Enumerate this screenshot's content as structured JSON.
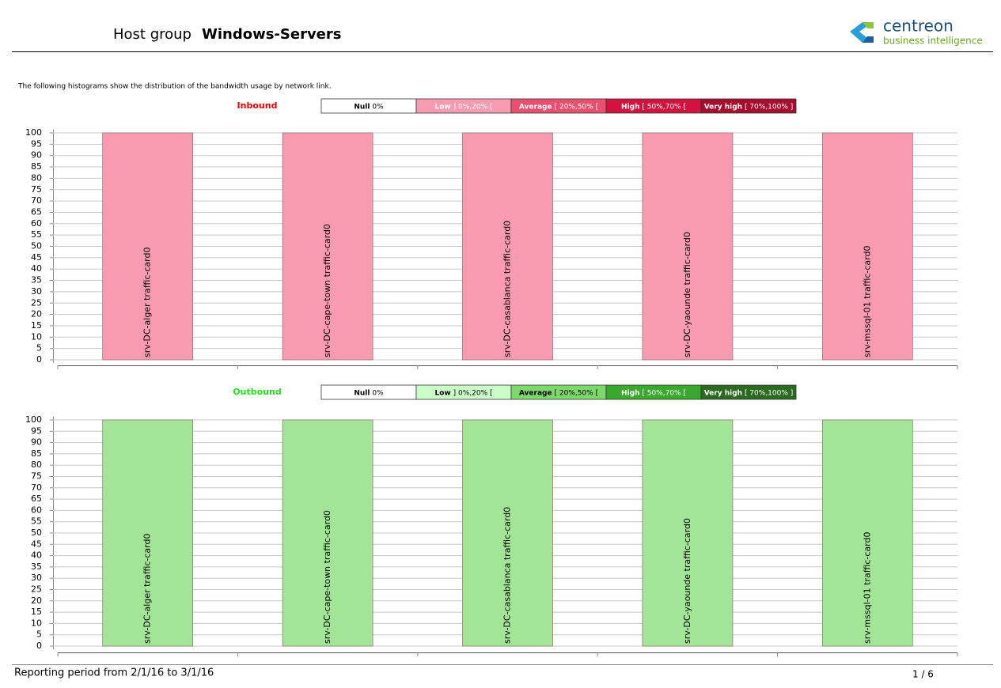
{
  "header": {
    "label": "Host group",
    "title": "Windows-Servers",
    "logo_name": "centreon",
    "logo_tagline": "business intelligence"
  },
  "intro": "The following histograms show the distribution of the bandwidth usage by network link.",
  "chart_data": [
    {
      "type": "bar",
      "title": "Inbound",
      "title_color": "#e00000",
      "legend": [
        {
          "name": "Null",
          "range": "0%",
          "color": "#ffffff",
          "text_color": "#000000"
        },
        {
          "name": "Low",
          "range": "] 0%,20% [",
          "color": "#f99bb0",
          "text_color": "#ffffff"
        },
        {
          "name": "Average",
          "range": "[ 20%,50% [",
          "color": "#e9506f",
          "text_color": "#ffffff"
        },
        {
          "name": "High",
          "range": "[ 50%,70% [",
          "color": "#d41240",
          "text_color": "#ffffff"
        },
        {
          "name": "Very high",
          "range": "[ 70%,100% ]",
          "color": "#a80d2e",
          "text_color": "#ffffff"
        }
      ],
      "categories": [
        "srv-DC-alger traffic-card0",
        "srv-DC-cape-town traffic-card0",
        "srv-DC-casablanca traffic-card0",
        "srv-DC-yaounde traffic-card0",
        "srv-mssql-01 traffic-card0"
      ],
      "values": [
        100,
        100,
        100,
        100,
        100
      ],
      "color": "#f99bb0",
      "ylim": [
        0,
        100
      ],
      "yticks": [
        0,
        5,
        10,
        15,
        20,
        25,
        30,
        35,
        40,
        45,
        50,
        55,
        60,
        65,
        70,
        75,
        80,
        85,
        90,
        95,
        100
      ],
      "grid": true
    },
    {
      "type": "bar",
      "title": "Outbound",
      "title_color": "#22e022",
      "legend": [
        {
          "name": "Null",
          "range": "0%",
          "color": "#ffffff",
          "text_color": "#000000"
        },
        {
          "name": "Low",
          "range": "] 0%,20% [",
          "color": "#ccfcc8",
          "text_color": "#000000"
        },
        {
          "name": "Average",
          "range": "[ 20%,50% [",
          "color": "#7dd96c",
          "text_color": "#000000"
        },
        {
          "name": "High",
          "range": "[ 50%,70% [",
          "color": "#3aa82c",
          "text_color": "#ffffff"
        },
        {
          "name": "Very high",
          "range": "[ 70%,100% ]",
          "color": "#2a6b1f",
          "text_color": "#ffffff"
        }
      ],
      "categories": [
        "srv-DC-alger traffic-card0",
        "srv-DC-cape-town traffic-card0",
        "srv-DC-casablanca traffic-card0",
        "srv-DC-yaounde traffic-card0",
        "srv-mssql-01 traffic-card0"
      ],
      "values": [
        100,
        100,
        100,
        100,
        100
      ],
      "color": "#a3e596",
      "ylim": [
        0,
        100
      ],
      "yticks": [
        0,
        5,
        10,
        15,
        20,
        25,
        30,
        35,
        40,
        45,
        50,
        55,
        60,
        65,
        70,
        75,
        80,
        85,
        90,
        95,
        100
      ],
      "grid": true
    }
  ],
  "footer": {
    "period": "Reporting period from 2/1/16 to 3/1/16",
    "page": "1 / 6"
  }
}
